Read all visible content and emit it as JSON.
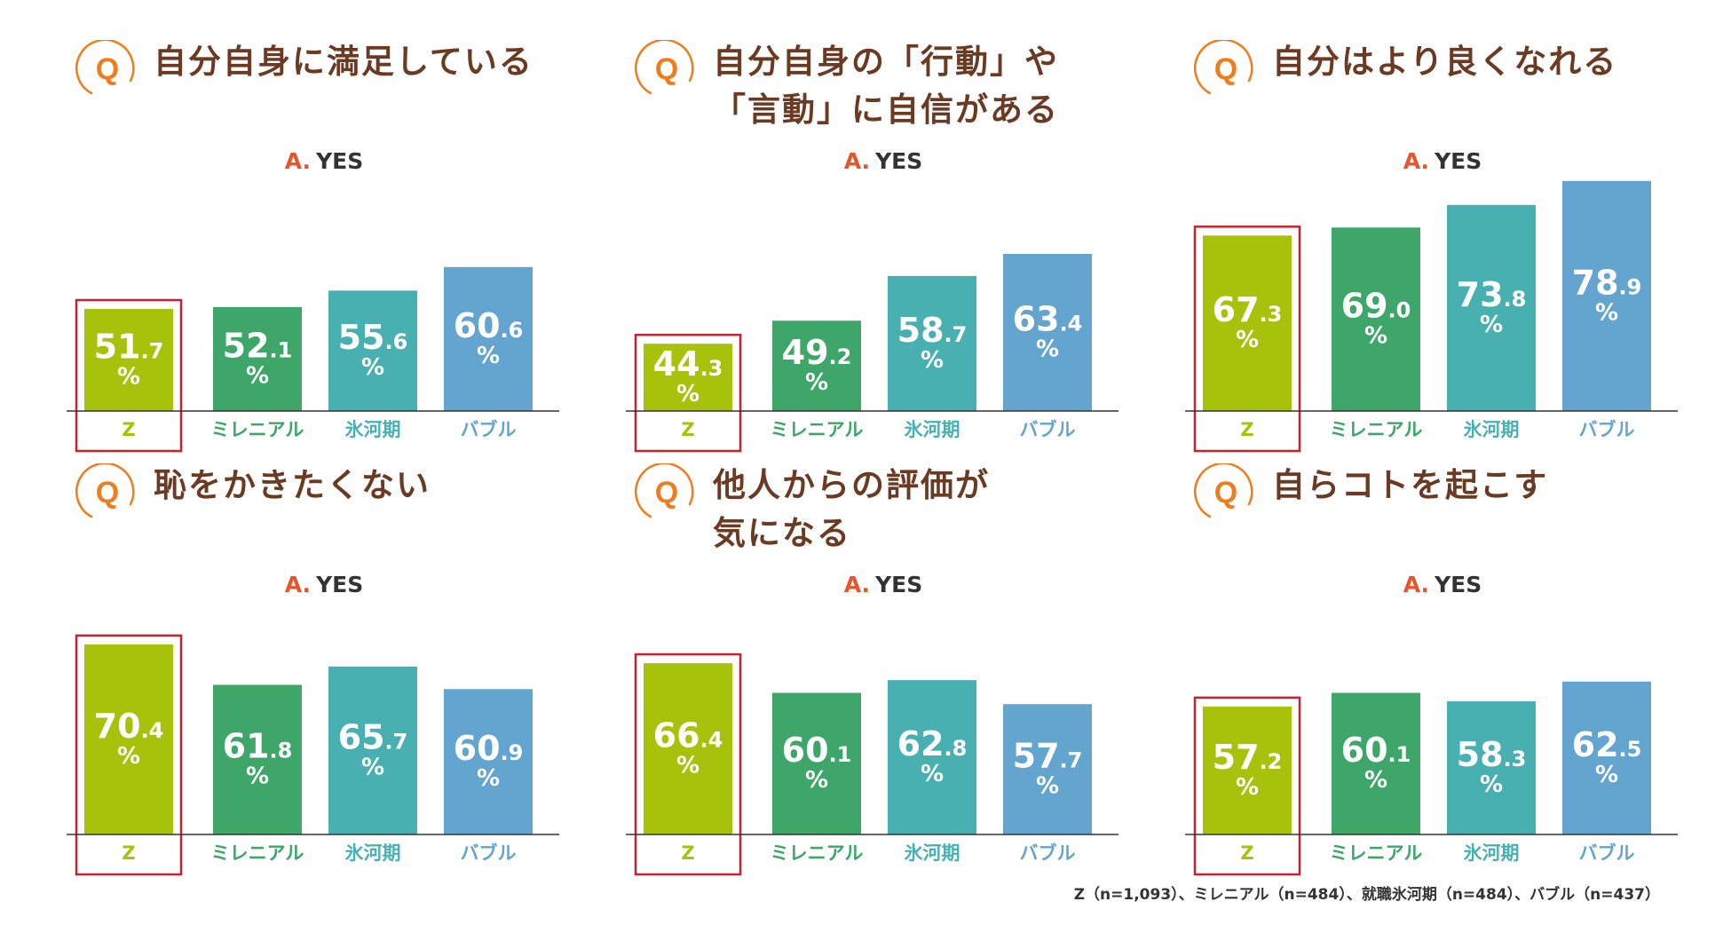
{
  "colors": {
    "series": [
      "#a8c10a",
      "#3fa66a",
      "#49b0b2",
      "#64a5d0"
    ],
    "highlight_border": "#c4242f",
    "q_orange": "#ee7d1d",
    "answer_orange": "#e6552b",
    "title_brown": "#6b3a22"
  },
  "answer_prefix": "A.",
  "percent_sign": "%",
  "q_letter": "Q",
  "footnote": "Z（n=1,093）、ミレニアル（n=484）、就職氷河期（n=484）、バブル（n=437）",
  "chart_data": [
    {
      "type": "bar",
      "title_lines": [
        "自分自身に満足している"
      ],
      "answer": "YES",
      "categories": [
        "Z",
        "ミレニアル",
        "氷河期",
        "バブル"
      ],
      "values": [
        51.7,
        52.1,
        55.6,
        60.6
      ],
      "highlight": "Z"
    },
    {
      "type": "bar",
      "title_lines": [
        "自分自身の「行動」や",
        "「言動」に自信がある"
      ],
      "answer": "YES",
      "categories": [
        "Z",
        "ミレニアル",
        "氷河期",
        "バブル"
      ],
      "values": [
        44.3,
        49.2,
        58.7,
        63.4
      ],
      "highlight": "Z"
    },
    {
      "type": "bar",
      "title_lines": [
        "自分はより良くなれる"
      ],
      "answer": "YES",
      "categories": [
        "Z",
        "ミレニアル",
        "氷河期",
        "バブル"
      ],
      "values": [
        67.3,
        69.0,
        73.8,
        78.9
      ],
      "highlight": "Z"
    },
    {
      "type": "bar",
      "title_lines": [
        "恥をかきたくない"
      ],
      "answer": "YES",
      "categories": [
        "Z",
        "ミレニアル",
        "氷河期",
        "バブル"
      ],
      "values": [
        70.4,
        61.8,
        65.7,
        60.9
      ],
      "highlight": "Z"
    },
    {
      "type": "bar",
      "title_lines": [
        "他人からの評価が",
        "気になる"
      ],
      "answer": "YES",
      "categories": [
        "Z",
        "ミレニアル",
        "氷河期",
        "バブル"
      ],
      "values": [
        66.4,
        60.1,
        62.8,
        57.7
      ],
      "highlight": "Z"
    },
    {
      "type": "bar",
      "title_lines": [
        "自らコトを起こす"
      ],
      "answer": "YES",
      "categories": [
        "Z",
        "ミレニアル",
        "氷河期",
        "バブル"
      ],
      "values": [
        57.2,
        60.1,
        58.3,
        62.5
      ],
      "highlight": "Z"
    }
  ]
}
